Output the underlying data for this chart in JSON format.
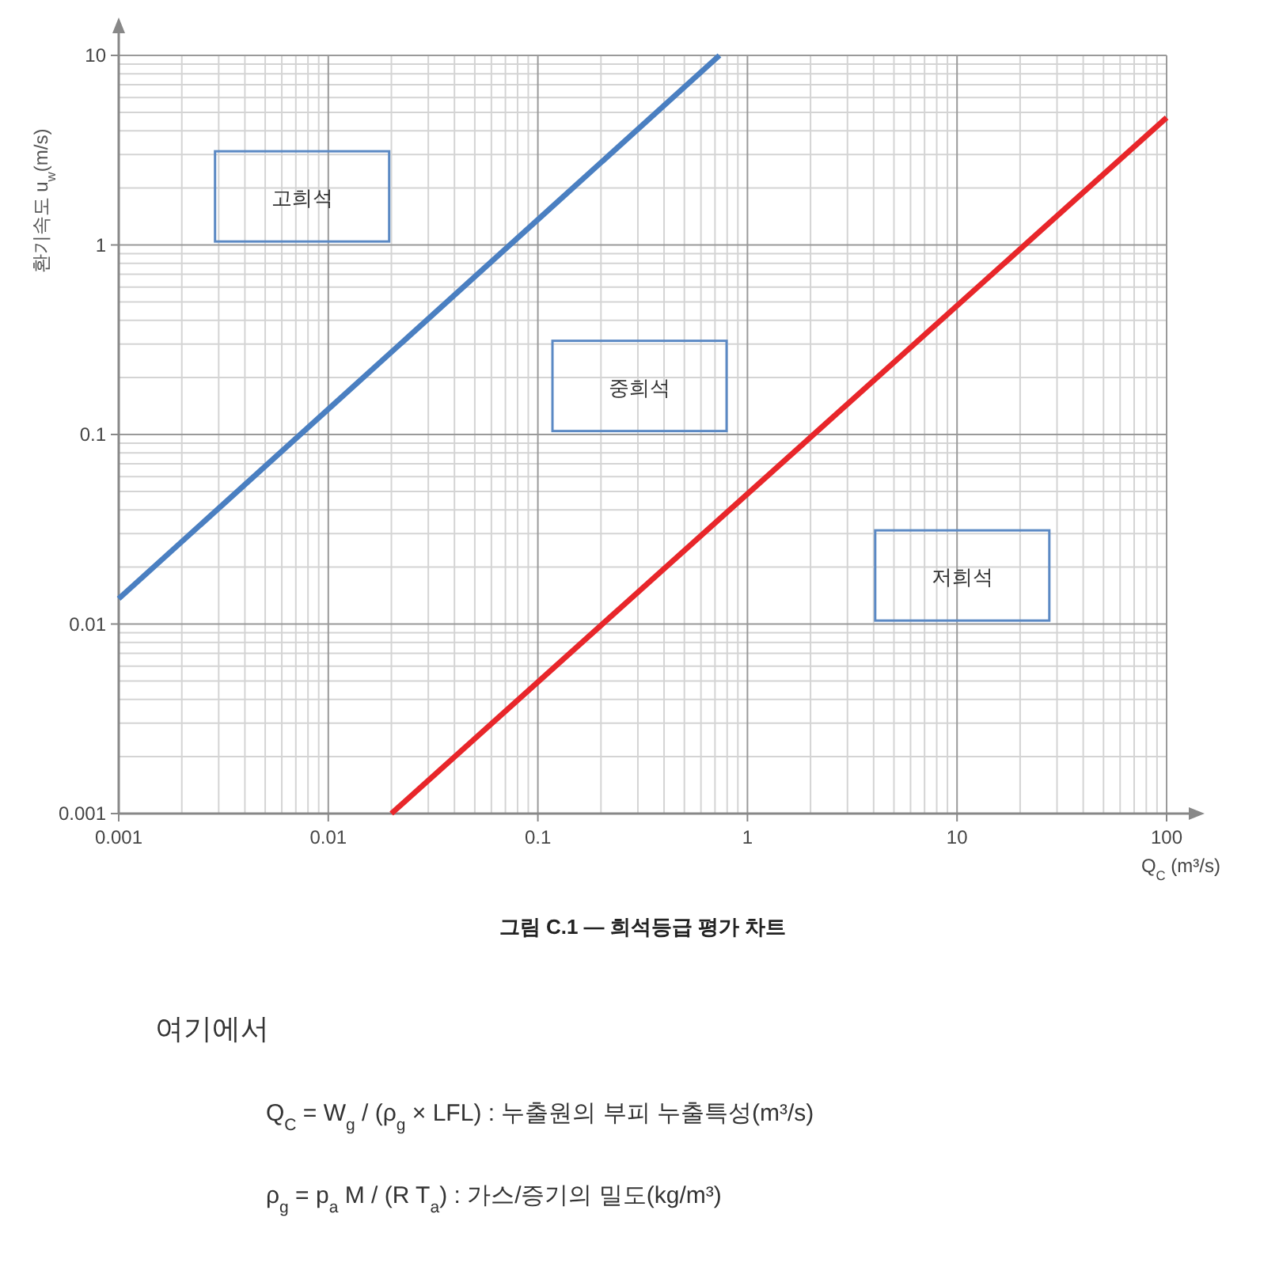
{
  "chart_data": {
    "type": "line",
    "title": "그림 C.1 — 희석등급 평가 차트",
    "xlabel": "Q$_{C}$  (m³/s)",
    "ylabel": "환기속도 u$_{w}$(m/s)",
    "log": "xy",
    "grid": true,
    "line_style": "solid",
    "marker": "none",
    "xlim": [
      0.001,
      100
    ],
    "ylim": [
      0.001,
      10
    ],
    "xticks": [
      0.001,
      0.01,
      0.1,
      1,
      10,
      100
    ],
    "yticks": [
      0.001,
      0.01,
      0.1,
      1,
      10
    ],
    "series": [
      {
        "color": "#4a7fc1",
        "x": [
          0.001,
          0.735
        ],
        "values": [
          0.0136,
          10
        ]
      },
      {
        "color": "#e8262a",
        "x": [
          0.02,
          100
        ],
        "values": [
          0.001,
          4.7
        ]
      }
    ],
    "annotations": [
      "고희석",
      "중희석",
      "저희석",
      "여기에서",
      "Q$_{C}$ = W$_{g}$ / (ρ$_{g}$ × LFL)   : 누출원의 부피 누출특성(m³/s)",
      "ρ$_{g}$ = p$_{a}$ M / (R T$_{a}$)   : 가스/증기의 밀도(kg/m³)"
    ]
  }
}
